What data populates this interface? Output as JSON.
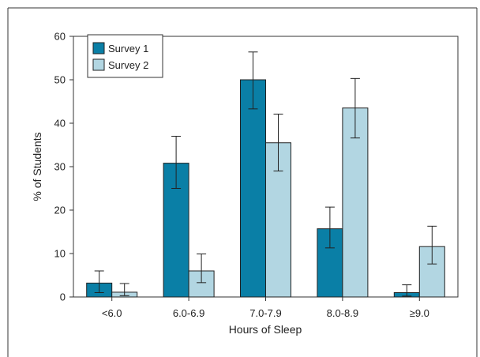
{
  "chart_data": {
    "type": "bar",
    "title": "",
    "xlabel": "Hours of Sleep",
    "ylabel": "% of Students",
    "categories": [
      "<6.0",
      "6.0-6.9",
      "7.0-7.9",
      "8.0-8.9",
      "≥9.0"
    ],
    "ylim": [
      0,
      60
    ],
    "yticks": [
      "0",
      "10",
      "20",
      "30",
      "40",
      "50",
      "60"
    ],
    "series": [
      {
        "name": "Survey 1",
        "color": "#0a7fa6",
        "values": [
          3.2,
          30.8,
          50.0,
          15.7,
          1.0
        ],
        "error_low": [
          1.0,
          25.0,
          43.3,
          11.3,
          0.2
        ],
        "error_high": [
          6.0,
          37.0,
          56.4,
          20.7,
          2.8
        ]
      },
      {
        "name": "Survey 2",
        "color": "#b2d6e2",
        "values": [
          1.1,
          6.0,
          35.5,
          43.5,
          11.6
        ],
        "error_low": [
          0.3,
          3.3,
          29.0,
          36.6,
          7.6
        ],
        "error_high": [
          3.1,
          9.9,
          42.1,
          50.3,
          16.3
        ]
      }
    ],
    "legend": {
      "position": "top-left",
      "entries": [
        "Survey 1",
        "Survey 2"
      ]
    },
    "grid": false
  }
}
